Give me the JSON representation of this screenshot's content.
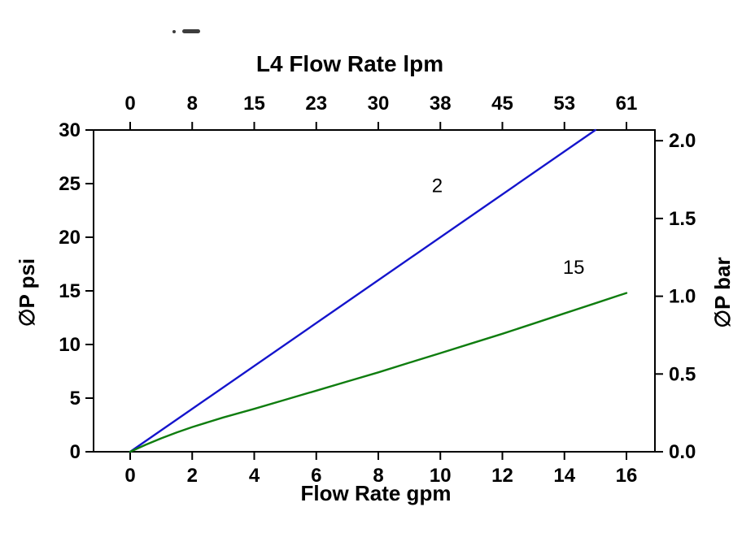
{
  "chart_data": {
    "type": "line",
    "title_top": "L4  Flow Rate lpm",
    "xlabel_bottom": "Flow Rate gpm",
    "ylabel_left": "∅P psi",
    "ylabel_right": "∅P bar",
    "x_bottom": {
      "min": 0,
      "max": 16,
      "ticks": [
        0,
        2,
        4,
        6,
        8,
        10,
        12,
        14,
        16
      ]
    },
    "x_top": {
      "tick_labels": [
        "0",
        "8",
        "15",
        "23",
        "30",
        "38",
        "45",
        "53",
        "61"
      ]
    },
    "y_left": {
      "min": 0,
      "max": 30,
      "ticks": [
        0,
        5,
        10,
        15,
        20,
        25,
        30
      ]
    },
    "y_right": {
      "tick_labels": [
        "0.0",
        "0.5",
        "1.0",
        "1.5",
        "2.0"
      ],
      "tick_psi": [
        0,
        7.25,
        14.5,
        21.75,
        29.0
      ]
    },
    "grid": false,
    "frame_color": "#000000",
    "series": [
      {
        "name": "2",
        "label": "2",
        "color": "#1414cc",
        "label_at": {
          "x": 9.9,
          "y": 24.2
        },
        "points": [
          [
            0,
            0
          ],
          [
            15,
            30
          ]
        ]
      },
      {
        "name": "15",
        "label": "15",
        "color": "#0f7d0f",
        "label_at": {
          "x": 14.3,
          "y": 16.6
        },
        "points": [
          [
            0,
            0
          ],
          [
            0.5,
            0.65
          ],
          [
            1,
            1.25
          ],
          [
            1.5,
            1.8
          ],
          [
            2,
            2.3
          ],
          [
            3,
            3.2
          ],
          [
            4,
            4.0
          ],
          [
            5,
            4.85
          ],
          [
            6,
            5.7
          ],
          [
            7,
            6.55
          ],
          [
            8,
            7.4
          ],
          [
            9,
            8.3
          ],
          [
            10,
            9.2
          ],
          [
            11,
            10.1
          ],
          [
            12,
            11.0
          ],
          [
            13,
            11.95
          ],
          [
            14,
            12.9
          ],
          [
            15,
            13.85
          ],
          [
            16,
            14.8
          ]
        ]
      }
    ]
  }
}
